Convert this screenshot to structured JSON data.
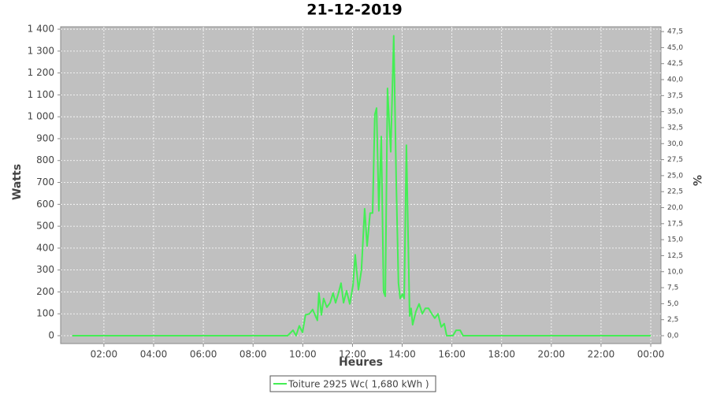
{
  "chart_data": {
    "type": "line",
    "title": "21-12-2019",
    "x_label": "Heures",
    "y_label": "Watts",
    "y2_label": "%",
    "x": [
      0.73,
      9.39,
      9.61,
      9.73,
      9.86,
      9.99,
      10.11,
      10.27,
      10.4,
      10.49,
      10.59,
      10.65,
      10.75,
      10.84,
      10.97,
      11.1,
      11.22,
      11.32,
      11.45,
      11.54,
      11.64,
      11.76,
      11.89,
      12.02,
      12.11,
      12.24,
      12.36,
      12.49,
      12.59,
      12.71,
      12.81,
      12.9,
      12.97,
      13.06,
      13.16,
      13.25,
      13.32,
      13.41,
      13.54,
      13.66,
      13.76,
      13.85,
      13.92,
      14.01,
      14.08,
      14.17,
      14.23,
      14.3,
      14.36,
      14.42,
      14.55,
      14.68,
      14.81,
      14.93,
      15.06,
      15.19,
      15.31,
      15.44,
      15.57,
      15.69,
      15.79,
      16.04,
      16.17,
      16.33,
      16.45,
      24
    ],
    "series": [
      {
        "name": "Toiture 2925 Wc( 1,680 kWh )",
        "color": "#44ee55",
        "values": [
          0,
          0,
          25,
          0,
          45,
          15,
          95,
          100,
          120,
          95,
          70,
          195,
          95,
          170,
          130,
          150,
          195,
          150,
          200,
          240,
          150,
          205,
          145,
          230,
          370,
          210,
          300,
          580,
          410,
          560,
          560,
          1010,
          1040,
          570,
          910,
          200,
          180,
          1130,
          840,
          1370,
          700,
          240,
          170,
          190,
          170,
          870,
          500,
          90,
          125,
          50,
          110,
          145,
          100,
          125,
          125,
          100,
          80,
          100,
          40,
          55,
          0,
          0,
          25,
          25,
          0,
          0
        ]
      }
    ],
    "xlim": [
      0.26,
      24.41
    ],
    "xticks": [
      {
        "value": 2,
        "label": "02:00"
      },
      {
        "value": 4,
        "label": "04:00"
      },
      {
        "value": 6,
        "label": "06:00"
      },
      {
        "value": 8,
        "label": "08:00"
      },
      {
        "value": 10,
        "label": "10:00"
      },
      {
        "value": 12,
        "label": "12:00"
      },
      {
        "value": 14,
        "label": "14:00"
      },
      {
        "value": 16,
        "label": "16:00"
      },
      {
        "value": 18,
        "label": "18:00"
      },
      {
        "value": 20,
        "label": "20:00"
      },
      {
        "value": 22,
        "label": "22:00"
      },
      {
        "value": 24,
        "label": "00:00"
      }
    ],
    "ylim": [
      -36,
      1411
    ],
    "yticks": [
      0,
      100,
      200,
      300,
      400,
      500,
      600,
      700,
      800,
      900,
      {
        "value": 1000,
        "label": "1 000"
      },
      {
        "value": 1100,
        "label": "1 100"
      },
      {
        "value": 1200,
        "label": "1 200"
      },
      {
        "value": 1300,
        "label": "1 300"
      },
      {
        "value": 1400,
        "label": "1 400"
      }
    ],
    "y2lim": [
      -1.23,
      48.25
    ],
    "y2ticks": [
      {
        "value": 0,
        "label": "0,0"
      },
      {
        "value": 2.5,
        "label": "2,5"
      },
      {
        "value": 5,
        "label": "5,0"
      },
      {
        "value": 7.5,
        "label": "7,5"
      },
      {
        "value": 10,
        "label": "10,0"
      },
      {
        "value": 12.5,
        "label": "12,5"
      },
      {
        "value": 15,
        "label": "15,0"
      },
      {
        "value": 17.5,
        "label": "17,5"
      },
      {
        "value": 20,
        "label": "20,0"
      },
      {
        "value": 22.5,
        "label": "22,5"
      },
      {
        "value": 25,
        "label": "25,0"
      },
      {
        "value": 27.5,
        "label": "27,5"
      },
      {
        "value": 30,
        "label": "30,0"
      },
      {
        "value": 32.5,
        "label": "32,5"
      },
      {
        "value": 35,
        "label": "35,0"
      },
      {
        "value": 37.5,
        "label": "37,5"
      },
      {
        "value": 40,
        "label": "40,0"
      },
      {
        "value": 42.5,
        "label": "42,5"
      },
      {
        "value": 45,
        "label": "45,0"
      },
      {
        "value": 47.5,
        "label": "47,5"
      }
    ],
    "grid": true,
    "plot_background": "#c0c0c0"
  }
}
